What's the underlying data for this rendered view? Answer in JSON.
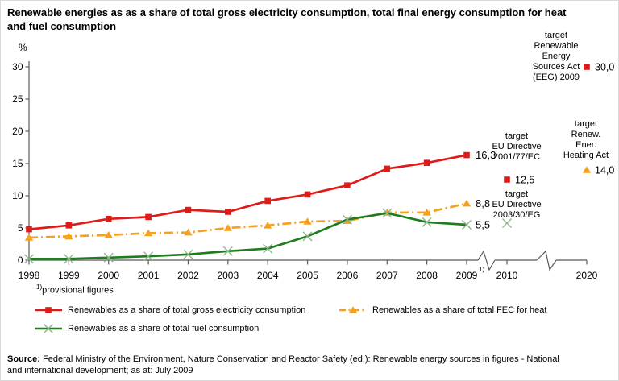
{
  "title_lines": [
    "Renewable energies as as a share of total gross electricity consumption, total final energy consumption for heat",
    "and fuel consumption"
  ],
  "footnote": {
    "sup": "1)",
    "text": "provisional figures"
  },
  "source": {
    "label": "Source:",
    "line1": "Federal Ministry of the Environment, Nature Conservation and Reactor Safety (ed.): Renewable energy sources in figures - National",
    "line2": "and international development; as at: July 2009"
  },
  "chart_data": {
    "type": "line",
    "title": "Renewable energies as as a share of total gross electricity consumption, total final energy consumption for heat and fuel consumption",
    "ylabel": "%",
    "xlabel": "",
    "ylim": [
      0,
      30
    ],
    "grid": false,
    "axis_color": "#595959",
    "x_marker_color": "#8fb58f",
    "y_ticks": [
      0,
      5,
      10,
      15,
      20,
      25,
      30
    ],
    "x_tick_labels": [
      "1998",
      "1999",
      "2000",
      "2001",
      "2002",
      "2003",
      "2004",
      "2005",
      "2006",
      "2007",
      "2008",
      "2009",
      "2010",
      "2020"
    ],
    "x": [
      1998,
      1999,
      2000,
      2001,
      2002,
      2003,
      2004,
      2005,
      2006,
      2007,
      2008,
      2009
    ],
    "series": [
      {
        "name": "Renewables as a share of total gross electricity consumption",
        "color": "#dd1c1a",
        "marker": "square",
        "style": "solid",
        "values": [
          4.8,
          5.4,
          6.4,
          6.7,
          7.8,
          7.5,
          9.2,
          10.2,
          11.6,
          14.2,
          15.1,
          16.3
        ],
        "end_label": "16,3"
      },
      {
        "name": "Renewables as a share of total FEC for heat",
        "color": "#f5a01e",
        "marker": "triangle",
        "style": "dashdot",
        "values": [
          3.5,
          3.7,
          3.9,
          4.2,
          4.3,
          5.0,
          5.4,
          6.0,
          6.1,
          7.4,
          7.4,
          8.8
        ],
        "end_label": "8,8"
      },
      {
        "name": "Renewables as a share of total fuel consumption",
        "color": "#1e7d1e",
        "marker": "x",
        "style": "solid",
        "values": [
          0.2,
          0.2,
          0.4,
          0.6,
          0.9,
          1.4,
          1.8,
          3.7,
          6.3,
          7.3,
          5.9,
          5.5
        ],
        "end_label": "5,5"
      }
    ],
    "targets": [
      {
        "label_lines": [
          "target",
          "Renewable",
          "Energy",
          "Sources Act",
          "(EEG) 2009"
        ],
        "year": 2020,
        "value": 30.0,
        "value_label": "30,0",
        "marker": "square",
        "color": "#dd1c1a"
      },
      {
        "label_lines": [
          "target",
          "EU Directive",
          "2001/77/EC"
        ],
        "year": 2010,
        "value": 12.5,
        "value_label": "12,5",
        "marker": "square",
        "color": "#dd1c1a"
      },
      {
        "label_lines": [
          "target",
          "Renew.",
          "Ener.",
          "Heating Act"
        ],
        "year": 2020,
        "value": 14.0,
        "value_label": "14,0",
        "marker": "triangle",
        "color": "#f5a01e"
      },
      {
        "label_lines": [
          "target",
          "EU Directive",
          "2003/30/EG"
        ],
        "year": 2010,
        "value": 5.75,
        "value_label": "",
        "marker": "x",
        "color": "#1e7d1e"
      }
    ]
  }
}
